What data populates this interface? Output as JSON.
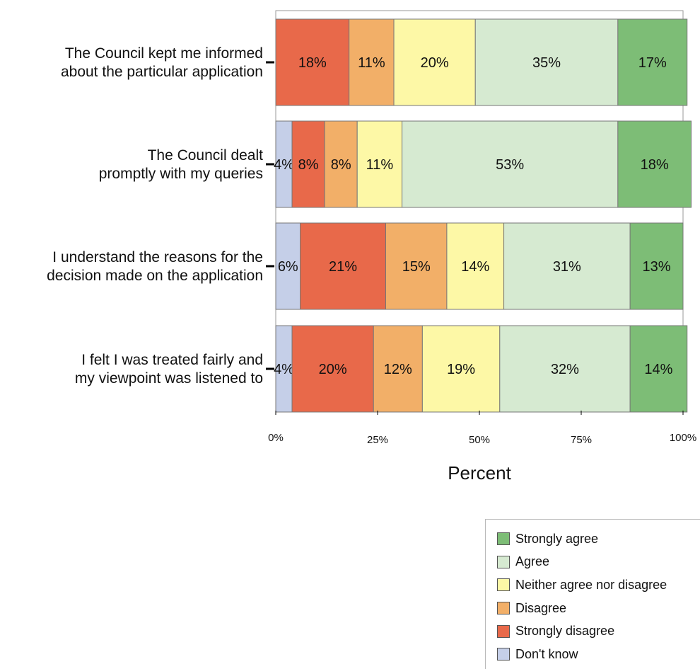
{
  "chart_data": {
    "type": "bar",
    "orientation": "horizontal",
    "stacked": true,
    "categories": [
      "The Council kept me informed about the particular application",
      "The Council dealt promptly with my queries",
      "I understand the reasons for the decision made on the application",
      "I felt I was treated fairly and my viewpoint was listened to"
    ],
    "category_lines": [
      [
        "The Council kept me informed",
        "about the particular application"
      ],
      [
        "The Council dealt",
        "promptly with my queries"
      ],
      [
        "I understand the reasons for the",
        "decision made on the application"
      ],
      [
        "I felt I was treated fairly and",
        "my viewpoint was listened to"
      ]
    ],
    "series": [
      {
        "name": "Don't know",
        "color": "#c5cfe8",
        "values": [
          0,
          4,
          6,
          4
        ],
        "labels": [
          "",
          "4%",
          "6%",
          "4%"
        ]
      },
      {
        "name": "Strongly disagree",
        "color": "#e8694a",
        "values": [
          18,
          8,
          21,
          20
        ],
        "labels": [
          "18%",
          "8%",
          "21%",
          "20%"
        ]
      },
      {
        "name": "Disagree",
        "color": "#f2af68",
        "values": [
          11,
          8,
          15,
          12
        ],
        "labels": [
          "11%",
          "8%",
          "15%",
          "12%"
        ]
      },
      {
        "name": "Neither agree nor disagree",
        "color": "#fdf8a6",
        "values": [
          20,
          11,
          14,
          19
        ],
        "labels": [
          "20%",
          "11%",
          "14%",
          "19%"
        ]
      },
      {
        "name": "Agree",
        "color": "#d6ead1",
        "values": [
          35,
          53,
          31,
          32
        ],
        "labels": [
          "35%",
          "53%",
          "31%",
          "32%"
        ]
      },
      {
        "name": "Strongly agree",
        "color": "#7dbd76",
        "values": [
          17,
          18,
          13,
          14
        ],
        "labels": [
          "17%",
          "18%",
          "13%",
          "14%"
        ]
      }
    ],
    "xlim": [
      0,
      100
    ],
    "xticks": [
      0,
      25,
      50,
      75,
      100
    ],
    "xtick_labels": [
      "0%",
      "25%",
      "50%",
      "75%",
      "100%"
    ],
    "xlabel": "Percent",
    "ylabel": "",
    "title": "",
    "legend_position": "bottom-right",
    "legend_order": [
      "Strongly agree",
      "Agree",
      "Neither agree nor disagree",
      "Disagree",
      "Strongly disagree",
      "Don't know"
    ],
    "grid": false
  }
}
